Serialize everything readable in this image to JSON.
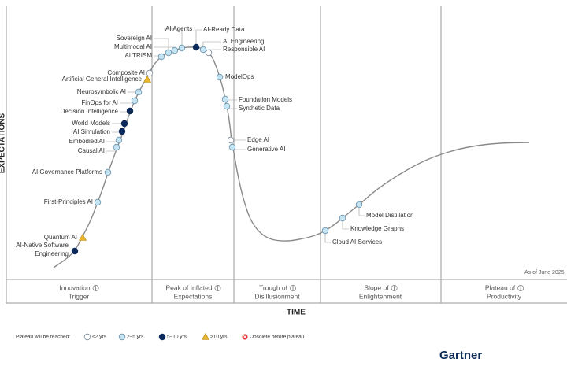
{
  "axis": {
    "y": "EXPECTATIONS",
    "x": "TIME"
  },
  "phases": [
    [
      "Innovation",
      "Trigger"
    ],
    [
      "Peak of Inflated",
      "Expectations"
    ],
    [
      "Trough of",
      "Disillusionment"
    ],
    [
      "Slope of",
      "Enlightenment"
    ],
    [
      "Plateau of",
      "Productivity"
    ]
  ],
  "note": "As of June 2025",
  "legend": {
    "title": "Plateau will be reached:",
    "items": [
      "<2 yrs.",
      "2–5 yrs.",
      "5–10 yrs.",
      ">10 yrs.",
      "Obsolete before plateau"
    ]
  },
  "brand": "Gartner",
  "technologies": [
    {
      "label": [
        "AI Agents"
      ],
      "plateau": "2–5 yrs."
    },
    {
      "label": [
        "AI-Ready Data"
      ],
      "plateau": "5–10 yrs."
    },
    {
      "label": [
        "Sovereign AI"
      ],
      "plateau": "2–5 yrs."
    },
    {
      "label": [
        "Multimodal AI"
      ],
      "plateau": "2–5 yrs."
    },
    {
      "label": [
        "AI TRISM"
      ],
      "plateau": "2–5 yrs."
    },
    {
      "label": [
        "AI Engineering"
      ],
      "plateau": "2–5 yrs."
    },
    {
      "label": [
        "Responsible AI"
      ],
      "plateau": "<2 yrs."
    },
    {
      "label": [
        "Composite AI"
      ],
      "plateau": "<2 yrs."
    },
    {
      "label": [
        "Artificial General Intelligence"
      ],
      "plateau": ">10 yrs."
    },
    {
      "label": [
        "ModelOps"
      ],
      "plateau": "2–5 yrs."
    },
    {
      "label": [
        "Neurosymbolic AI"
      ],
      "plateau": "2–5 yrs."
    },
    {
      "label": [
        "FinOps for AI"
      ],
      "plateau": "2–5 yrs."
    },
    {
      "label": [
        "Decision Intelligence"
      ],
      "plateau": "5–10 yrs."
    },
    {
      "label": [
        "Foundation Models"
      ],
      "plateau": "2–5 yrs."
    },
    {
      "label": [
        "Synthetic Data"
      ],
      "plateau": "2–5 yrs."
    },
    {
      "label": [
        "World Models"
      ],
      "plateau": "5–10 yrs."
    },
    {
      "label": [
        "AI Simulation"
      ],
      "plateau": "5–10 yrs."
    },
    {
      "label": [
        "Embodied AI"
      ],
      "plateau": "2–5 yrs."
    },
    {
      "label": [
        "Causal AI"
      ],
      "plateau": "2–5 yrs."
    },
    {
      "label": [
        "Edge AI"
      ],
      "plateau": "<2 yrs."
    },
    {
      "label": [
        "Generative AI"
      ],
      "plateau": "2–5 yrs."
    },
    {
      "label": [
        "AI Governance Platforms"
      ],
      "plateau": "2–5 yrs."
    },
    {
      "label": [
        "First-Principles AI"
      ],
      "plateau": "2–5 yrs."
    },
    {
      "label": [
        "Quantum AI"
      ],
      "plateau": ">10 yrs."
    },
    {
      "label": [
        "AI-Native Software",
        "Engineering"
      ],
      "plateau": "5–10 yrs."
    },
    {
      "label": [
        "Model Distillation"
      ],
      "plateau": "2–5 yrs."
    },
    {
      "label": [
        "Knowledge Graphs"
      ],
      "plateau": "2–5 yrs."
    },
    {
      "label": [
        "Cloud AI Services"
      ],
      "plateau": "2–5 yrs."
    }
  ]
}
